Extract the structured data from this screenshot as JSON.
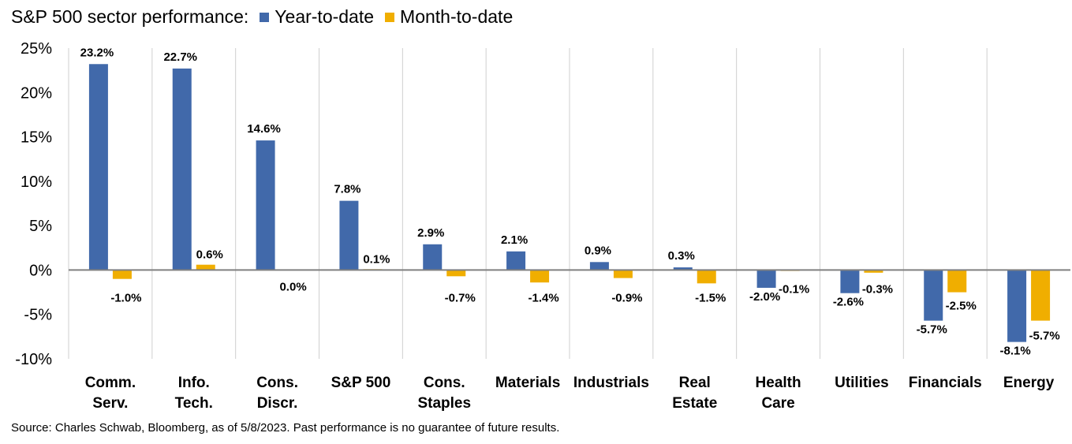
{
  "chart_data": {
    "type": "bar",
    "title": "S&P 500 sector performance:",
    "categories": [
      [
        "Comm.",
        "Serv."
      ],
      [
        "Info.",
        "Tech."
      ],
      [
        "Cons.",
        "Discr."
      ],
      [
        "S&P 500"
      ],
      [
        "Cons.",
        "Staples"
      ],
      [
        "Materials"
      ],
      [
        "Industrials"
      ],
      [
        "Real",
        "Estate"
      ],
      [
        "Health",
        "Care"
      ],
      [
        "Utilities"
      ],
      [
        "Financials"
      ],
      [
        "Energy"
      ]
    ],
    "series": [
      {
        "name": "Year-to-date",
        "color": "#4169aa",
        "values": [
          23.2,
          22.7,
          14.6,
          7.8,
          2.9,
          2.1,
          0.9,
          0.3,
          -2.0,
          -2.6,
          -5.7,
          -8.1
        ],
        "labels": [
          "23.2%",
          "22.7%",
          "14.6%",
          "7.8%",
          "2.9%",
          "2.1%",
          "0.9%",
          "0.3%",
          "-2.0%",
          "-2.6%",
          "-5.7%",
          "-8.1%"
        ]
      },
      {
        "name": "Month-to-date",
        "color": "#f0ae00",
        "values": [
          -1.0,
          0.6,
          0.0,
          0.1,
          -0.7,
          -1.4,
          -0.9,
          -1.5,
          -0.1,
          -0.3,
          -2.5,
          -5.7
        ],
        "labels": [
          "-1.0%",
          "0.6%",
          "0.0%",
          "0.1%",
          "-0.7%",
          "-1.4%",
          "-0.9%",
          "-1.5%",
          "-0.1%",
          "-0.3%",
          "-2.5%",
          "-5.7%"
        ]
      }
    ],
    "yticks": [
      "25%",
      "20%",
      "15%",
      "10%",
      "5%",
      "0%",
      "-5%",
      "-10%"
    ],
    "ylim": [
      -10,
      25
    ],
    "grid": "vertical category separators",
    "legend": "top, inline with title"
  },
  "footer": {
    "source": "Source: Charles Schwab, Bloomberg, as of 5/8/2023. Past performance is no guarantee of future results."
  }
}
